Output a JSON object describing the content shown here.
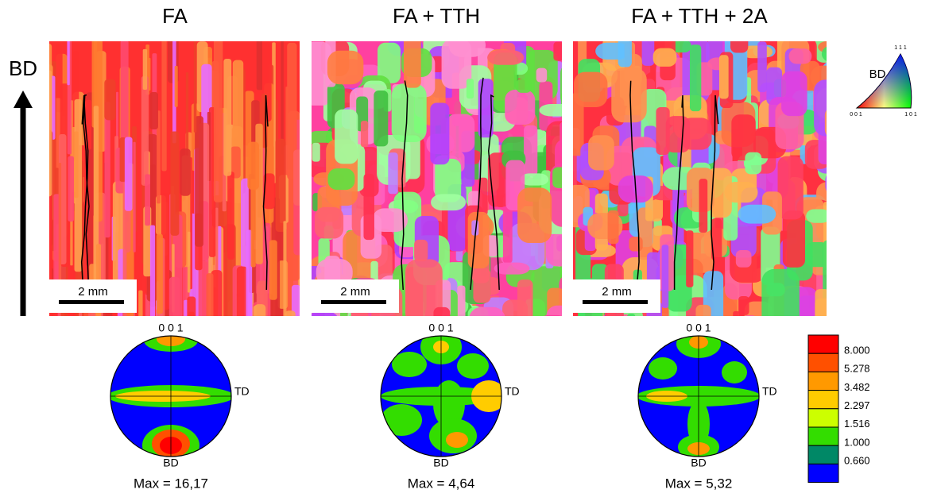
{
  "build_direction": "BD",
  "ipf_key": {
    "label": "BD",
    "top": "1 1 1",
    "left": "0 0 1",
    "right": "1 0 1"
  },
  "panels": [
    {
      "title": "FA",
      "scale_bar": "2 mm",
      "pole_figure": {
        "top": "0 0 1",
        "right": "TD",
        "bottom": "BD",
        "max": "Max = 16,17"
      }
    },
    {
      "title": "FA + TTH",
      "scale_bar": "2 mm",
      "pole_figure": {
        "top": "0 0 1",
        "right": "TD",
        "bottom": "BD",
        "max": "Max = 4,64"
      }
    },
    {
      "title": "FA + TTH + 2A",
      "scale_bar": "2 mm",
      "pole_figure": {
        "top": "0 0 1",
        "right": "TD",
        "bottom": "BD",
        "max": "Max = 5,32"
      }
    }
  ],
  "legend": {
    "levels": [
      "8.000",
      "5.278",
      "3.482",
      "2.297",
      "1.516",
      "1.000",
      "0.660"
    ]
  }
}
